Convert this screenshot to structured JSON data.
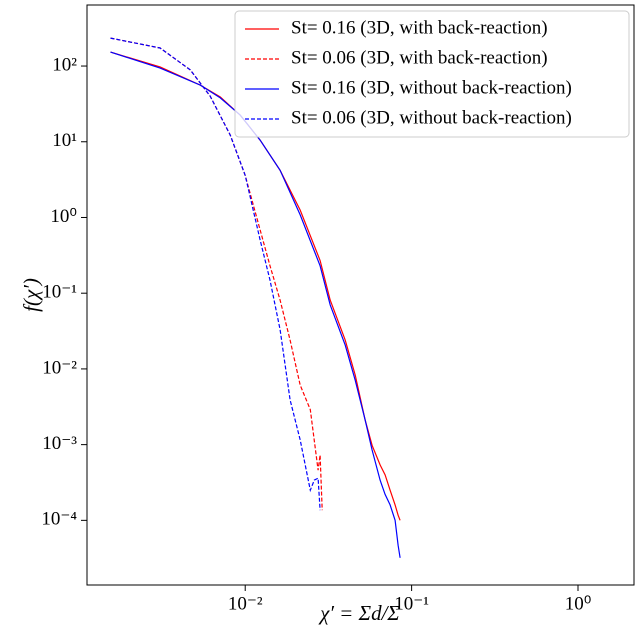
{
  "chart_data": {
    "type": "line",
    "xlabel": "χ′ = Σd/Σ",
    "ylabel": "f(χ′)",
    "xscale": "log",
    "yscale": "log",
    "xlim": [
      0.00112,
      2.17
    ],
    "ylim": [
      1.4e-05,
      640
    ],
    "xticks": [
      {
        "value": 0.01,
        "label": "10⁻²"
      },
      {
        "value": 0.1,
        "label": "10⁻¹"
      },
      {
        "value": 1,
        "label": "10⁰"
      }
    ],
    "yticks": [
      {
        "value": 0.0001,
        "label": "10⁻⁴"
      },
      {
        "value": 0.001,
        "label": "10⁻³"
      },
      {
        "value": 0.01,
        "label": "10⁻²"
      },
      {
        "value": 0.1,
        "label": "10⁻¹"
      },
      {
        "value": 1,
        "label": "10⁰"
      },
      {
        "value": 10,
        "label": "10¹"
      },
      {
        "value": 100,
        "label": "10²"
      }
    ],
    "legend": "upper right",
    "series": [
      {
        "name": "St= 0.16 (3D, with back-reaction)",
        "color": "#ff0000",
        "dash": "solid",
        "x": [
          0.00155,
          0.00308,
          0.00537,
          0.00708,
          0.00933,
          0.0123,
          0.0162,
          0.0214,
          0.0282,
          0.0324,
          0.0399,
          0.0458,
          0.0526,
          0.0579,
          0.0647,
          0.0693,
          0.0743,
          0.0796,
          0.083,
          0.0853
        ],
        "values": [
          153,
          97,
          56,
          39,
          22.5,
          10.5,
          4.2,
          1.25,
          0.27,
          0.081,
          0.024,
          0.0083,
          0.0021,
          0.00098,
          0.00054,
          0.0004,
          0.00025,
          0.00016,
          0.000117,
          0.0001
        ]
      },
      {
        "name": "St= 0.06 (3D, with back-reaction)",
        "color": "#ff0000",
        "dash": "dashed",
        "x": [
          0.00155,
          0.00308,
          0.00468,
          0.00616,
          0.00813,
          0.01,
          0.0123,
          0.0141,
          0.0162,
          0.0186,
          0.0214,
          0.0246,
          0.0274,
          0.0282,
          0.029
        ],
        "values": [
          234,
          173,
          89,
          40,
          12.3,
          3.6,
          0.68,
          0.23,
          0.081,
          0.024,
          0.0061,
          0.0029,
          0.00046,
          0.00073,
          0.000136
        ]
      },
      {
        "name": "St= 0.16 (3D, without back-reaction)",
        "color": "#0000ff",
        "dash": "solid",
        "x": [
          0.00155,
          0.00308,
          0.00537,
          0.00708,
          0.00933,
          0.0123,
          0.0162,
          0.0214,
          0.0282,
          0.0324,
          0.0399,
          0.0458,
          0.0526,
          0.0579,
          0.0647,
          0.0693,
          0.0743,
          0.0796,
          0.083,
          0.0853
        ],
        "values": [
          153,
          94,
          56,
          38,
          22.5,
          10.5,
          4.2,
          1.08,
          0.23,
          0.07,
          0.0206,
          0.0071,
          0.0021,
          0.00085,
          0.00034,
          0.00022,
          0.00016,
          0.0001,
          4.7e-05,
          3.2e-05
        ]
      },
      {
        "name": "St= 0.06 (3D, without back-reaction)",
        "color": "#0000ff",
        "dash": "dashed",
        "x": [
          0.00155,
          0.00308,
          0.00468,
          0.00616,
          0.00813,
          0.01,
          0.0123,
          0.0141,
          0.0162,
          0.0186,
          0.0214,
          0.0246,
          0.026,
          0.0274,
          0.0282
        ],
        "values": [
          234,
          173,
          89,
          40,
          12.3,
          3.6,
          0.5,
          0.149,
          0.033,
          0.0039,
          0.00115,
          0.00025,
          0.00034,
          0.00036,
          0.000136
        ]
      }
    ]
  }
}
